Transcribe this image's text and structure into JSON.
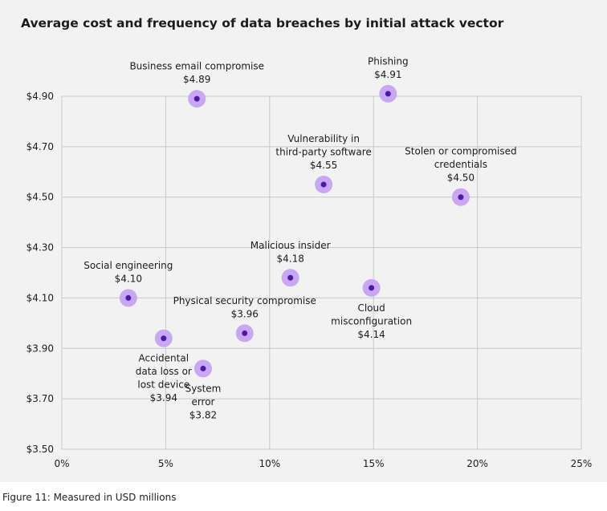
{
  "page": {
    "title": "Average cost and frequency of data breaches by initial attack vector",
    "caption": "Figure 11: Measured in USD millions"
  },
  "colors": {
    "panel": "#f2f2f2",
    "grid": "#c8c8c8",
    "marker_halo": "#c9a7f5",
    "marker_core": "#4b1aa8",
    "text": "#1c1c1c"
  },
  "chart_data": {
    "type": "scatter",
    "title": "Average cost and frequency of data breaches by initial attack vector",
    "xlabel": "",
    "ylabel": "",
    "xlim": [
      0,
      25
    ],
    "ylim": [
      3.5,
      4.9
    ],
    "x_ticks": [
      0,
      5,
      10,
      15,
      20,
      25
    ],
    "x_tick_labels": [
      "0%",
      "5%",
      "10%",
      "15%",
      "20%",
      "25%"
    ],
    "y_ticks": [
      3.5,
      3.7,
      3.9,
      4.1,
      4.3,
      4.5,
      4.7,
      4.9
    ],
    "y_tick_labels": [
      "$3.50",
      "$3.70",
      "$3.90",
      "$4.10",
      "$4.30",
      "$4.50",
      "$4.70",
      "$4.90"
    ],
    "grid": true,
    "points": [
      {
        "id": "business-email-compromise",
        "label": [
          "Business email compromise"
        ],
        "value_label": "$4.89",
        "x": 6.5,
        "y": 4.89,
        "label_pos": "above"
      },
      {
        "id": "phishing",
        "label": [
          "Phishing"
        ],
        "value_label": "$4.91",
        "x": 15.7,
        "y": 4.91,
        "label_pos": "above"
      },
      {
        "id": "vulnerability-third-party",
        "label": [
          "Vulnerability in",
          "third-party software"
        ],
        "value_label": "$4.55",
        "x": 12.6,
        "y": 4.55,
        "label_pos": "above"
      },
      {
        "id": "stolen-credentials",
        "label": [
          "Stolen or compromised",
          "credentials"
        ],
        "value_label": "$4.50",
        "x": 19.2,
        "y": 4.5,
        "label_pos": "above"
      },
      {
        "id": "malicious-insider",
        "label": [
          "Malicious insider"
        ],
        "value_label": "$4.18",
        "x": 11.0,
        "y": 4.18,
        "label_pos": "above"
      },
      {
        "id": "social-engineering",
        "label": [
          "Social engineering"
        ],
        "value_label": "$4.10",
        "x": 3.2,
        "y": 4.1,
        "label_pos": "above"
      },
      {
        "id": "cloud-misconfiguration",
        "label": [
          "Cloud",
          "misconfiguration"
        ],
        "value_label": "$4.14",
        "x": 14.9,
        "y": 4.14,
        "label_pos": "below"
      },
      {
        "id": "physical-security-compromise",
        "label": [
          "Physical security compromise"
        ],
        "value_label": "$3.96",
        "x": 8.8,
        "y": 3.96,
        "label_pos": "above"
      },
      {
        "id": "accidental-data-loss",
        "label": [
          "Accidental",
          "data loss or",
          "lost device"
        ],
        "value_label": "$3.94",
        "x": 4.9,
        "y": 3.94,
        "label_pos": "below"
      },
      {
        "id": "system-error",
        "label": [
          "System",
          "error"
        ],
        "value_label": "$3.82",
        "x": 6.8,
        "y": 3.82,
        "label_pos": "below"
      }
    ]
  }
}
